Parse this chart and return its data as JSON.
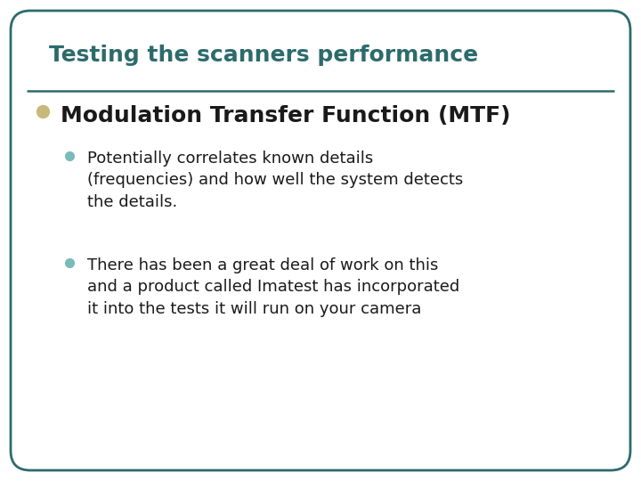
{
  "title": "Testing the scanners performance",
  "title_color": "#2d6b6b",
  "title_fontsize": 18,
  "background_color": "#ffffff",
  "border_color": "#2d6b6b",
  "border_linewidth": 2.0,
  "separator_color": "#2d6b6b",
  "separator_linewidth": 1.8,
  "bullet1_text": "Modulation Transfer Function (MTF)",
  "bullet1_color": "#c8b87a",
  "bullet1_fontsize": 18,
  "sub_bullet_color": "#7ababa",
  "sub_bullet_fontsize": 13,
  "sub1_lines": [
    "Potentially correlates known details",
    "(frequencies) and how well the system detects",
    "the details."
  ],
  "sub2_lines": [
    "There has been a great deal of work on this",
    "and a product called Imatest has incorporated",
    "it into the tests it will run on your camera"
  ],
  "text_color": "#1a1a1a",
  "text_fontsize": 13
}
